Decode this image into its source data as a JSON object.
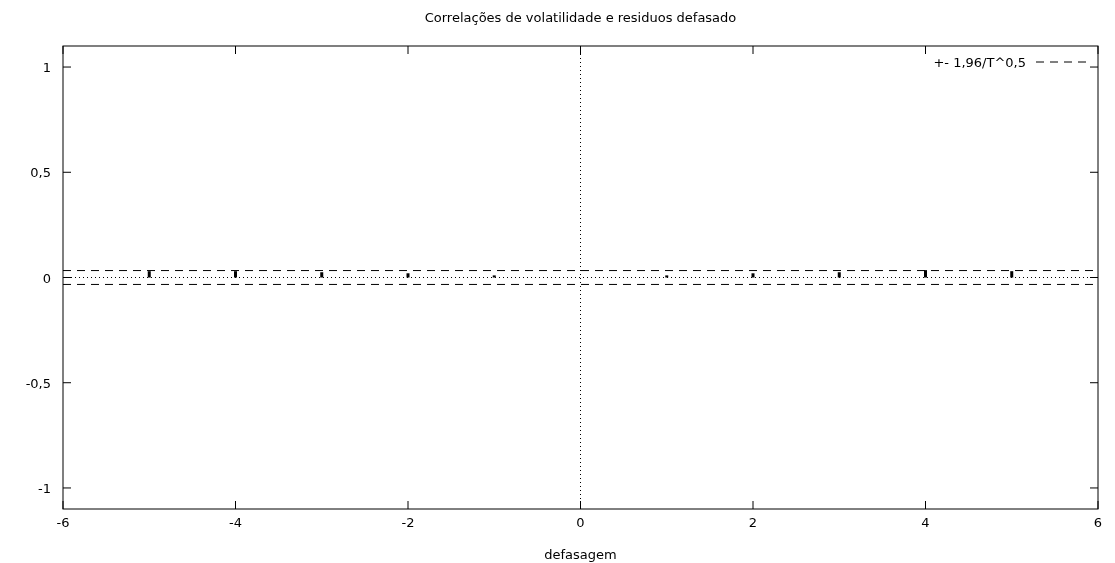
{
  "chart_data": {
    "type": "bar",
    "title": "Correlações de volatilidade e residuos defasado",
    "xlabel": "defasagem",
    "x": [
      -5,
      -4,
      -3,
      -2,
      -1,
      1,
      2,
      3,
      4,
      5
    ],
    "series": [
      {
        "color": "#000000",
        "values": [
          0.03,
          0.03,
          0.025,
          0.02,
          0.01,
          0.01,
          0.02,
          0.025,
          0.035,
          0.03
        ]
      }
    ],
    "xlim": [
      -6,
      6
    ],
    "xticks": [
      -6,
      -4,
      -2,
      0,
      2,
      4,
      6
    ],
    "ylim": [
      -1.1,
      1.1
    ],
    "yticks": [
      {
        "value": -1,
        "label": "-1"
      },
      {
        "value": -0.5,
        "label": "-0,5"
      },
      0,
      {
        "value": 0.5,
        "label": "0,5"
      },
      1
    ],
    "ref_lines": [
      {
        "axis": "y",
        "value": 0.033,
        "label": "+- 1,96/T^0,5",
        "line_style": "dashed",
        "color": "#000000"
      },
      {
        "axis": "y",
        "value": -0.033,
        "line_style": "dashed",
        "color": "#000000"
      },
      {
        "axis": "y",
        "value": 0,
        "line_style": "dotted",
        "color": "#000000"
      },
      {
        "axis": "x",
        "value": 0,
        "line_style": "dotted",
        "color": "#000000"
      }
    ],
    "grid": false,
    "legend": "top right"
  }
}
